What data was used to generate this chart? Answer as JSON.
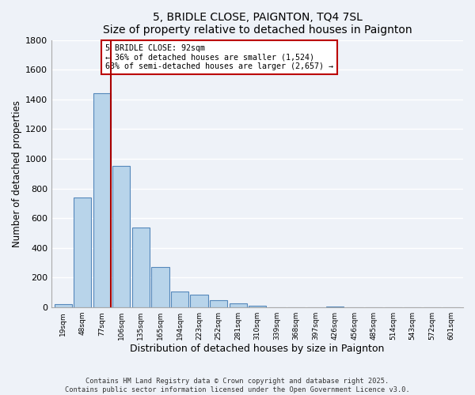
{
  "title": "5, BRIDLE CLOSE, PAIGNTON, TQ4 7SL",
  "subtitle": "Size of property relative to detached houses in Paignton",
  "xlabel": "Distribution of detached houses by size in Paignton",
  "ylabel": "Number of detached properties",
  "bar_labels": [
    "19sqm",
    "48sqm",
    "77sqm",
    "106sqm",
    "135sqm",
    "165sqm",
    "194sqm",
    "223sqm",
    "252sqm",
    "281sqm",
    "310sqm",
    "339sqm",
    "368sqm",
    "397sqm",
    "426sqm",
    "456sqm",
    "485sqm",
    "514sqm",
    "543sqm",
    "572sqm",
    "601sqm"
  ],
  "bar_values": [
    20,
    740,
    1440,
    950,
    535,
    270,
    105,
    88,
    50,
    28,
    10,
    0,
    0,
    0,
    8,
    0,
    0,
    0,
    0,
    0,
    0
  ],
  "bar_color": "#b8d4ea",
  "bar_edge_color": "#5588bb",
  "vline_color": "#aa0000",
  "annotation_title": "5 BRIDLE CLOSE: 92sqm",
  "annotation_line1": "← 36% of detached houses are smaller (1,524)",
  "annotation_line2": "63% of semi-detached houses are larger (2,657) →",
  "annotation_box_color": "#ffffff",
  "annotation_box_edge": "#bb0000",
  "ylim": [
    0,
    1800
  ],
  "yticks": [
    0,
    200,
    400,
    600,
    800,
    1000,
    1200,
    1400,
    1600,
    1800
  ],
  "footer_line1": "Contains HM Land Registry data © Crown copyright and database right 2025.",
  "footer_line2": "Contains public sector information licensed under the Open Government Licence v3.0.",
  "bg_color": "#eef2f8",
  "grid_color": "#ffffff"
}
